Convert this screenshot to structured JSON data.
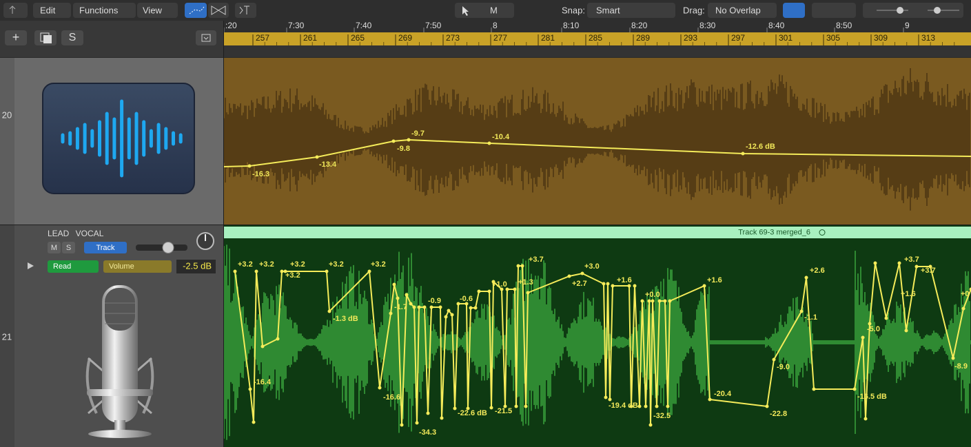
{
  "toolbar": {
    "menus": [
      "Edit",
      "Functions",
      "View"
    ],
    "tool_menu": "M",
    "snap_label": "Snap:",
    "snap_value": "Smart",
    "drag_label": "Drag:",
    "drag_value": "No Overlap"
  },
  "track_list": {
    "buttons": [
      "+",
      "S"
    ]
  },
  "ruler": {
    "times": [
      ":20",
      "7:30",
      "7:40",
      "7:50",
      "8",
      "8:10",
      "8:20",
      "8:30",
      "8:40",
      "8:50",
      "9"
    ],
    "bars": [
      "257",
      "261",
      "265",
      "269",
      "273",
      "277",
      "281",
      "285",
      "289",
      "293",
      "297",
      "301",
      "305",
      "309",
      "313"
    ]
  },
  "tracks": [
    {
      "number": "20",
      "automation_labels": [
        "-16.3",
        "-13.4",
        "-9.8",
        "-9.7",
        "-10.4",
        "-12.6 dB"
      ]
    },
    {
      "number": "21",
      "name": "LEAD VOCAL",
      "mute": "M",
      "solo": "S",
      "mode_button": "Track",
      "automation_mode": "Read",
      "parameter": "Volume",
      "value": "-2.5 dB",
      "region_name": "Track 69-3 merged_6",
      "automation_labels": [
        "+3.2",
        "+3.2",
        "+3.2",
        "+3.2",
        "+3.2",
        "+3.2",
        "-16.4",
        "-1.3 dB",
        "-16.6",
        "-1.7",
        "-34.3",
        "-0.9",
        "-0.6",
        "-22.6 dB",
        "+1.0",
        "-21.5",
        "+1.3",
        "+3.7",
        "+2.7",
        "+3.0",
        "-19.4 dB",
        "+1.6",
        "+0.0",
        "-32.5",
        "+1.6",
        "-20.4",
        "-22.8",
        "-9.0",
        "+2.6",
        "-1.1",
        "-16.5 dB",
        "-5.0",
        "+1.6",
        "+3.7",
        "+3.7",
        "-8.9",
        "+0"
      ]
    }
  ]
}
